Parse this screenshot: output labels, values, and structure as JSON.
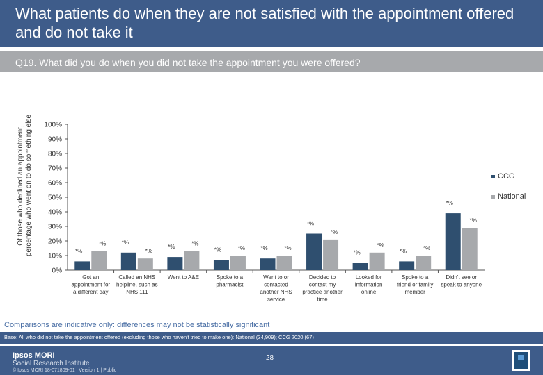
{
  "header": {
    "title": "What patients do when they are not satisfied with the appointment offered and do not take it",
    "question": "Q19. What did you do when you did not take the appointment you were offered?"
  },
  "chart_data": {
    "type": "bar",
    "ylabel": "Of those who declined an appointment, percentage who went on to do something else",
    "ylim": [
      0,
      100
    ],
    "yticks": [
      "0%",
      "10%",
      "20%",
      "30%",
      "40%",
      "50%",
      "60%",
      "70%",
      "80%",
      "90%",
      "100%"
    ],
    "categories": [
      "Got an appointment for a different day",
      "Called an NHS helpline, such as NHS 111",
      "Went to A&E",
      "Spoke to a pharmacist",
      "Went to or contacted another NHS service",
      "Decided to contact my practice another time",
      "Looked for information online",
      "Spoke to a friend or family member",
      "Didn't see or speak to anyone"
    ],
    "category_lines": [
      [
        "Got an",
        "appointment for",
        "a different day"
      ],
      [
        "Called an NHS",
        "helpline, such as",
        "NHS 111"
      ],
      [
        "Went to A&E"
      ],
      [
        "Spoke to a",
        "pharmacist"
      ],
      [
        "Went to or",
        "contacted",
        "another NHS",
        "service"
      ],
      [
        "Decided to",
        "contact my",
        "practice another",
        "time"
      ],
      [
        "Looked for",
        "information",
        "online"
      ],
      [
        "Spoke to a",
        "friend or family",
        "member"
      ],
      [
        "Didn't see or",
        "speak to anyone"
      ]
    ],
    "series": [
      {
        "name": "CCG",
        "color": "#2f4f6f",
        "values": [
          6,
          12,
          9,
          7,
          8,
          25,
          5,
          6,
          39
        ],
        "labels": [
          "*%",
          "*%",
          "*%",
          "*%",
          "*%",
          "*%",
          "*%",
          "*%",
          "*%"
        ]
      },
      {
        "name": "National",
        "color": "#a7a9ac",
        "values": [
          13,
          8,
          13,
          10,
          10,
          21,
          12,
          10,
          29
        ],
        "labels": [
          "*%",
          "*%",
          "*%",
          "*%",
          "*%",
          "*%",
          "*%",
          "*%",
          "*%"
        ]
      }
    ],
    "legend_position": "right",
    "grid": false
  },
  "note": "Comparisons are indicative only: differences may not be statistically significant",
  "base": "Base: All who did not take the appointment offered (excluding those who haven't tried to make one): National (34,909); CCG 2020 (67)",
  "footer": {
    "brand_line1": "Ipsos MORI",
    "brand_line2": "Social Research Institute",
    "page": "28",
    "copyright": "© Ipsos MORI    18-071809-01 | Version 1 | Public"
  }
}
